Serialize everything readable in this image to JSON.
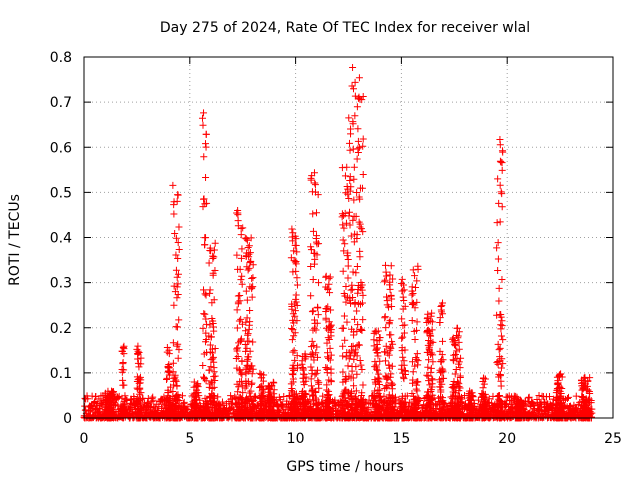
{
  "chart_data": {
    "type": "scatter",
    "title": "Day 275 of 2024, Rate Of TEC Index for receiver wlal",
    "xlabel": "GPS time / hours",
    "ylabel": "ROTI / TECUs",
    "xlim": [
      0,
      25
    ],
    "ylim": [
      0,
      0.8
    ],
    "xticks": [
      0,
      5,
      10,
      15,
      20,
      25
    ],
    "xtick_labels": [
      "0",
      "5",
      "10",
      "15",
      "20",
      "25"
    ],
    "yticks": [
      0,
      0.1,
      0.2,
      0.3,
      0.4,
      0.5,
      0.6,
      0.7,
      0.8
    ],
    "ytick_labels": [
      "0",
      "0.1",
      "0.2",
      "0.3",
      "0.4",
      "0.5",
      "0.6",
      "0.7",
      "0.8"
    ],
    "grid": "dotted",
    "legend": "none",
    "marker": "plus",
    "series": [
      {
        "color": "#ff0000",
        "x_range": [
          0,
          24
        ],
        "baseline_max": 0.05,
        "bursts": [
          {
            "x": 1.0,
            "x_end": 1.4,
            "max": 0.06
          },
          {
            "x": 1.8,
            "x_end": 1.9,
            "max": 0.16
          },
          {
            "x": 2.5,
            "x_end": 2.7,
            "max": 0.16
          },
          {
            "x": 3.9,
            "x_end": 4.1,
            "max": 0.16
          },
          {
            "x": 4.2,
            "x_end": 4.5,
            "max": 0.52
          },
          {
            "x": 5.2,
            "x_end": 5.4,
            "max": 0.08
          },
          {
            "x": 5.6,
            "x_end": 5.8,
            "max": 0.69
          },
          {
            "x": 5.9,
            "x_end": 6.2,
            "max": 0.4
          },
          {
            "x": 7.2,
            "x_end": 7.5,
            "max": 0.46
          },
          {
            "x": 7.6,
            "x_end": 8.0,
            "max": 0.4
          },
          {
            "x": 8.3,
            "x_end": 8.5,
            "max": 0.1
          },
          {
            "x": 8.7,
            "x_end": 9.0,
            "max": 0.08
          },
          {
            "x": 9.8,
            "x_end": 10.1,
            "max": 0.43
          },
          {
            "x": 10.3,
            "x_end": 10.5,
            "max": 0.15
          },
          {
            "x": 10.7,
            "x_end": 11.1,
            "max": 0.55
          },
          {
            "x": 11.4,
            "x_end": 11.7,
            "max": 0.32
          },
          {
            "x": 12.2,
            "x_end": 12.5,
            "max": 0.56
          },
          {
            "x": 12.5,
            "x_end": 13.2,
            "max": 0.79
          },
          {
            "x": 13.7,
            "x_end": 14.0,
            "max": 0.2
          },
          {
            "x": 14.2,
            "x_end": 14.6,
            "max": 0.34
          },
          {
            "x": 15.0,
            "x_end": 15.2,
            "max": 0.31
          },
          {
            "x": 15.5,
            "x_end": 15.8,
            "max": 0.34
          },
          {
            "x": 16.2,
            "x_end": 16.5,
            "max": 0.24
          },
          {
            "x": 16.8,
            "x_end": 17.0,
            "max": 0.26
          },
          {
            "x": 17.4,
            "x_end": 17.8,
            "max": 0.2
          },
          {
            "x": 18.2,
            "x_end": 18.4,
            "max": 0.06
          },
          {
            "x": 18.8,
            "x_end": 19.0,
            "max": 0.09
          },
          {
            "x": 19.5,
            "x_end": 19.8,
            "max": 0.64
          },
          {
            "x": 20.4,
            "x_end": 20.7,
            "max": 0.04
          },
          {
            "x": 22.3,
            "x_end": 22.6,
            "max": 0.1
          },
          {
            "x": 23.5,
            "x_end": 23.9,
            "max": 0.09
          }
        ]
      }
    ]
  }
}
